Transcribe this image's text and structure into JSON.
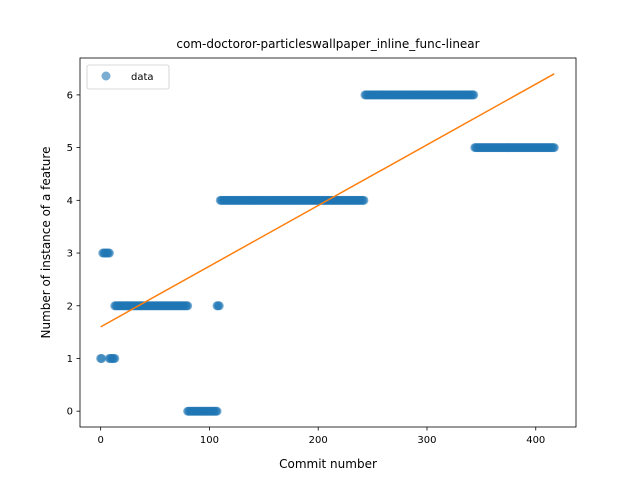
{
  "chart_data": {
    "type": "scatter",
    "title": "com-doctoror-particleswallpaper_inline_func-linear",
    "xlabel": "Commit number",
    "ylabel": "Number of instance of a feature",
    "xlim": [
      -19,
      437
    ],
    "ylim": [
      -0.3,
      6.7
    ],
    "xticks": [
      0,
      100,
      200,
      300,
      400
    ],
    "yticks": [
      0,
      1,
      2,
      3,
      4,
      5,
      6
    ],
    "legend": {
      "position": "top-left",
      "entries": [
        "data"
      ]
    },
    "colors": {
      "points": "#1f77b4",
      "fit": "#ff7f0e"
    },
    "series": [
      {
        "name": "data",
        "kind": "scatter",
        "segments": [
          {
            "x_start": 0,
            "x_end": 1,
            "y": 1
          },
          {
            "x_start": 2,
            "x_end": 8,
            "y": 3
          },
          {
            "x_start": 8,
            "x_end": 13,
            "y": 1
          },
          {
            "x_start": 13,
            "x_end": 80,
            "y": 2
          },
          {
            "x_start": 80,
            "x_end": 107,
            "y": 0
          },
          {
            "x_start": 107,
            "x_end": 109,
            "y": 2
          },
          {
            "x_start": 110,
            "x_end": 242,
            "y": 4
          },
          {
            "x_start": 243,
            "x_end": 343,
            "y": 6
          },
          {
            "x_start": 344,
            "x_end": 417,
            "y": 5
          }
        ]
      },
      {
        "name": "",
        "kind": "line",
        "x": [
          0,
          417
        ],
        "y": [
          1.6,
          6.4
        ]
      }
    ]
  }
}
